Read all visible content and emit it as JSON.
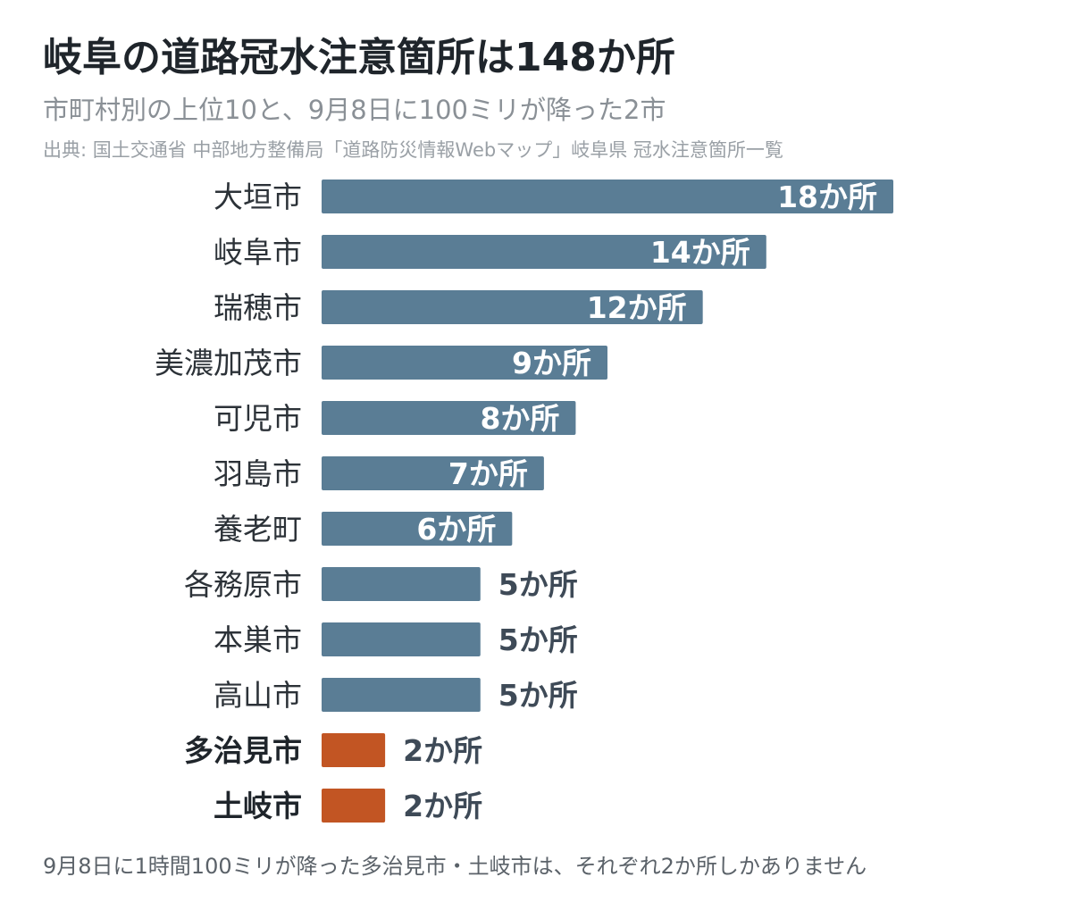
{
  "title": "岐阜の道路冠水注意箇所は148か所",
  "subtitle": "市町村別の上位10と、9月8日に100ミリが降った2市",
  "source": "出典: 国土交通省 中部地方整備局「道路防災情報Webマップ」岐阜県 冠水注意箇所一覧",
  "footnote": "9月8日に1時間100ミリが降った多治見市・土岐市は、それぞれ2か所しかありません",
  "colors": {
    "default_bar": "#5a7d95",
    "highlight_bar": "#c25523"
  },
  "chart_data": {
    "type": "bar",
    "orientation": "horizontal",
    "categories": [
      "大垣市",
      "岐阜市",
      "瑞穂市",
      "美濃加茂市",
      "可児市",
      "羽島市",
      "養老町",
      "各務原市",
      "本巣市",
      "高山市",
      "多治見市",
      "土岐市"
    ],
    "values": [
      18,
      14,
      12,
      9,
      8,
      7,
      6,
      5,
      5,
      5,
      2,
      2
    ],
    "value_labels": [
      "18か所",
      "14か所",
      "12か所",
      "9か所",
      "8か所",
      "7か所",
      "6か所",
      "5か所",
      "5か所",
      "5か所",
      "2か所",
      "2か所"
    ],
    "highlighted": [
      "多治見市",
      "土岐市"
    ],
    "xlim": [
      0,
      18
    ],
    "grid": false,
    "legend": "none"
  }
}
